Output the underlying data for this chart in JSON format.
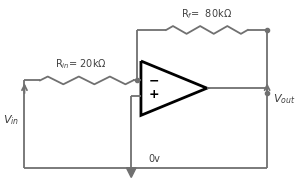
{
  "bg_color": "#ffffff",
  "line_color": "#707070",
  "text_color": "#404040",
  "rin_label": "R$_{in}$= 20kΩ",
  "rf_label": "R$_f$=  80kΩ",
  "vin_label": "V$_{in}$",
  "vout_label": "V$_{out}$",
  "gnd_label": "0v",
  "neg_label": "−",
  "pos_label": "+"
}
